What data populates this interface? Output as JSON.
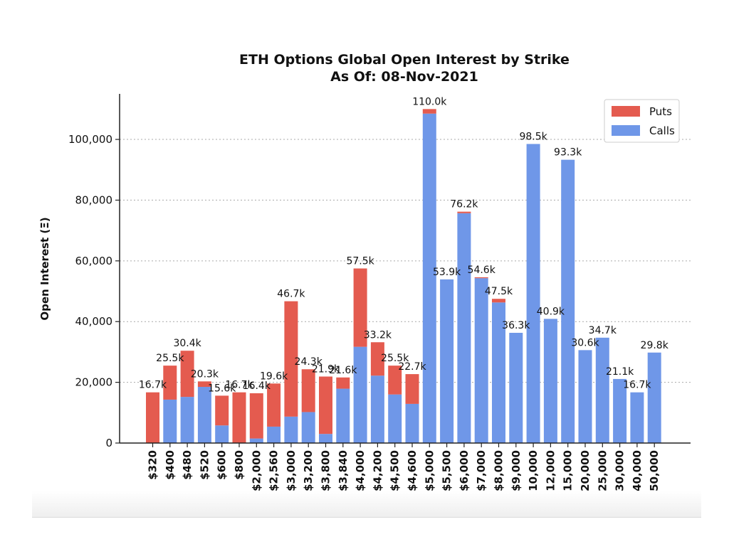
{
  "chart_data": {
    "type": "bar",
    "stacked": true,
    "title": "ETH Options Global Open Interest by Strike",
    "subtitle": "As Of: 08-Nov-2021",
    "ylabel": "Open Interest (Ξ)",
    "xlabel": "",
    "ylim": [
      0,
      115000
    ],
    "yticks": [
      0,
      20000,
      40000,
      60000,
      80000,
      100000
    ],
    "ytick_labels": [
      "0",
      "20,000",
      "40,000",
      "60,000",
      "80,000",
      "100,000"
    ],
    "grid": "horizontal dotted",
    "legend_position": "top-right",
    "categories": [
      "$320",
      "$400",
      "$480",
      "$520",
      "$600",
      "$800",
      "$2,000",
      "$2,560",
      "$3,000",
      "$3,200",
      "$3,800",
      "$3,840",
      "$4,000",
      "$4,200",
      "$4,500",
      "$4,600",
      "$5,000",
      "$5,500",
      "$6,000",
      "$7,000",
      "$8,000",
      "$9,000",
      "$10,000",
      "$12,000",
      "$15,000",
      "$20,000",
      "$25,000",
      "$30,000",
      "$40,000",
      "$50,000"
    ],
    "series": [
      {
        "name": "Calls",
        "color": "#6f97e8",
        "values": [
          0,
          14300,
          15200,
          18500,
          5800,
          0,
          1500,
          5400,
          8700,
          10200,
          3000,
          17900,
          31700,
          22200,
          16000,
          12900,
          108500,
          53900,
          75700,
          54300,
          46300,
          36300,
          98500,
          40900,
          93300,
          30600,
          34700,
          21100,
          16700,
          29800
        ]
      },
      {
        "name": "Puts",
        "color": "#e45b4f",
        "values": [
          16700,
          11200,
          15200,
          1800,
          9800,
          16700,
          14900,
          14200,
          38000,
          14100,
          18900,
          3700,
          25800,
          11000,
          9500,
          9800,
          1500,
          0,
          500,
          300,
          1200,
          0,
          0,
          0,
          0,
          0,
          0,
          0,
          0,
          0
        ]
      }
    ],
    "totals": [
      16700,
      25500,
      30400,
      20300,
      15600,
      16700,
      16400,
      19600,
      46700,
      24300,
      21900,
      21600,
      57500,
      33200,
      25500,
      22700,
      110000,
      53900,
      76200,
      54600,
      47500,
      36300,
      98500,
      40900,
      93300,
      30600,
      34700,
      21100,
      16700,
      29800
    ],
    "data_labels": [
      "16.7k",
      "25.5k",
      "30.4k",
      "20.3k",
      "15.6k",
      "16.7k",
      "16.4k",
      "19.6k",
      "46.7k",
      "24.3k",
      "21.9k",
      "21.6k",
      "57.5k",
      "33.2k",
      "25.5k",
      "22.7k",
      "110.0k",
      "53.9k",
      "76.2k",
      "54.6k",
      "47.5k",
      "36.3k",
      "98.5k",
      "40.9k",
      "93.3k",
      "30.6k",
      "34.7k",
      "21.1k",
      "16.7k",
      "29.8k"
    ],
    "legend": [
      "Puts",
      "Calls"
    ]
  }
}
